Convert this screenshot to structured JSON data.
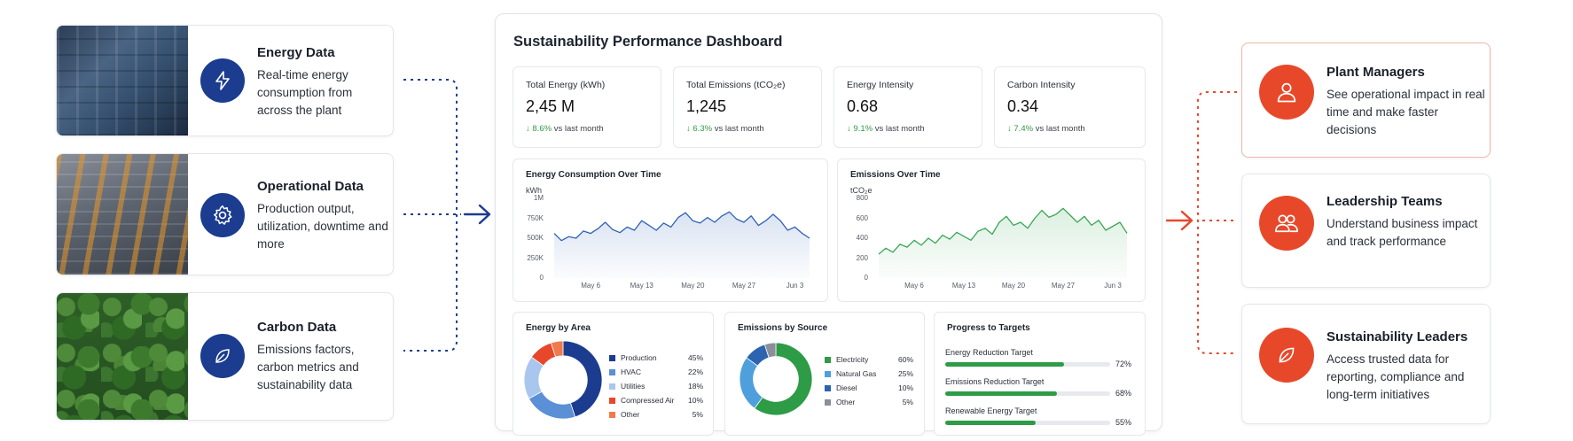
{
  "sources": [
    {
      "title": "Energy Data",
      "description": "Real-time energy consumption from across the plant",
      "icon": "lightning-icon",
      "photo": "factory-pipes-photo"
    },
    {
      "title": "Operational Data",
      "description": "Production output, utilization, downtime and more",
      "icon": "gear-icon",
      "photo": "robotic-assembly-line-photo"
    },
    {
      "title": "Carbon Data",
      "description": "Emissions factors, carbon metrics and sustainability data",
      "icon": "leaf-icon",
      "photo": "forest-canopy-photo"
    }
  ],
  "dashboard": {
    "title": "Sustainability Performance Dashboard",
    "kpis": [
      {
        "label": "Total Energy (kWh)",
        "value": "2,45 M",
        "delta": "8.6%",
        "delta_suffix": "vs last month"
      },
      {
        "label": "Total Emissions (tCO₂e)",
        "value": "1,245",
        "delta": "6.3%",
        "delta_suffix": "vs last month"
      },
      {
        "label": "Energy Intensity",
        "value": "0.68",
        "delta": "9.1%",
        "delta_suffix": "vs last month"
      },
      {
        "label": "Carbon Intensity",
        "value": "0.34",
        "delta": "7.4%",
        "delta_suffix": "vs last month"
      }
    ],
    "energy_by_area": {
      "title": "Energy by Area",
      "items": [
        {
          "label": "Production",
          "value": "45%"
        },
        {
          "label": "HVAC",
          "value": "22%"
        },
        {
          "label": "Utilities",
          "value": "18%"
        },
        {
          "label": "Compressed Air",
          "value": "10%"
        },
        {
          "label": "Other",
          "value": "5%"
        }
      ]
    },
    "emissions_by_source": {
      "title": "Emissions by Source",
      "items": [
        {
          "label": "Electricity",
          "value": "60%"
        },
        {
          "label": "Natural Gas",
          "value": "25%"
        },
        {
          "label": "Diesel",
          "value": "10%"
        },
        {
          "label": "Other",
          "value": "5%"
        }
      ]
    },
    "targets": {
      "title": "Progress to Targets",
      "items": [
        {
          "label": "Energy Reduction Target",
          "value": "72%",
          "fraction": 0.72
        },
        {
          "label": "Emissions Reduction Target",
          "value": "68%",
          "fraction": 0.68
        },
        {
          "label": "Renewable Energy Target",
          "value": "55%",
          "fraction": 0.55
        }
      ]
    }
  },
  "audiences": [
    {
      "title": "Plant Managers",
      "description": "See operational impact in real time and make faster decisions",
      "icon": "user-icon"
    },
    {
      "title": "Leadership Teams",
      "description": "Understand business impact and track performance",
      "icon": "team-icon"
    },
    {
      "title": "Sustainability Leaders",
      "description": "Access trusted data for reporting, compliance and long-term initiatives",
      "icon": "leaf-icon"
    }
  ],
  "colors": {
    "navy": "#1b3c8f",
    "accent_orange": "#e8482a",
    "green": "#2e9b47",
    "line_blue": "#2f62b5",
    "line_green": "#3aa655"
  },
  "chart_data": [
    {
      "type": "line",
      "title": "Energy Consumption Over Time",
      "ylabel": "kWh",
      "ytick_labels": [
        "0",
        "250K",
        "500K",
        "750K",
        "1M"
      ],
      "ylim": [
        0,
        1000000
      ],
      "xtick_labels": [
        "May 6",
        "May 13",
        "May 20",
        "May 27",
        "Jun 3"
      ],
      "x": [
        "May 1",
        "May 2",
        "May 3",
        "May 4",
        "May 5",
        "May 6",
        "May 7",
        "May 8",
        "May 9",
        "May 10",
        "May 11",
        "May 12",
        "May 13",
        "May 14",
        "May 15",
        "May 16",
        "May 17",
        "May 18",
        "May 19",
        "May 20",
        "May 21",
        "May 22",
        "May 23",
        "May 24",
        "May 25",
        "May 26",
        "May 27",
        "May 28",
        "May 29",
        "May 30",
        "May 31",
        "Jun 1",
        "Jun 2",
        "Jun 3",
        "Jun 4",
        "Jun 5"
      ],
      "series": [
        {
          "values": [
            560000,
            470000,
            520000,
            500000,
            590000,
            560000,
            620000,
            700000,
            610000,
            570000,
            640000,
            600000,
            720000,
            660000,
            600000,
            690000,
            640000,
            760000,
            820000,
            720000,
            690000,
            760000,
            700000,
            780000,
            830000,
            740000,
            700000,
            780000,
            660000,
            720000,
            800000,
            720000,
            600000,
            640000,
            560000,
            500000
          ]
        }
      ],
      "color": "#2f62b5",
      "grid": false
    },
    {
      "type": "line",
      "title": "Emissions Over Time",
      "ylabel": "tCO₂e",
      "ytick_labels": [
        "0",
        "200",
        "400",
        "600",
        "800"
      ],
      "ylim": [
        0,
        800
      ],
      "xtick_labels": [
        "May 6",
        "May 13",
        "May 20",
        "May 27",
        "Jun 3"
      ],
      "x": [
        "May 1",
        "May 2",
        "May 3",
        "May 4",
        "May 5",
        "May 6",
        "May 7",
        "May 8",
        "May 9",
        "May 10",
        "May 11",
        "May 12",
        "May 13",
        "May 14",
        "May 15",
        "May 16",
        "May 17",
        "May 18",
        "May 19",
        "May 20",
        "May 21",
        "May 22",
        "May 23",
        "May 24",
        "May 25",
        "May 26",
        "May 27",
        "May 28",
        "May 29",
        "May 30",
        "May 31",
        "Jun 1",
        "Jun 2",
        "Jun 3",
        "Jun 4",
        "Jun 5"
      ],
      "series": [
        {
          "values": [
            240,
            300,
            260,
            340,
            310,
            380,
            330,
            400,
            350,
            430,
            390,
            460,
            420,
            380,
            470,
            500,
            440,
            560,
            620,
            530,
            560,
            500,
            600,
            680,
            610,
            640,
            700,
            630,
            560,
            620,
            530,
            580,
            480,
            520,
            560,
            450
          ]
        }
      ],
      "color": "#3aa655",
      "grid": false
    },
    {
      "type": "pie",
      "title": "Energy by Area",
      "labels": [
        "Production",
        "HVAC",
        "Utilities",
        "Compressed Air",
        "Other"
      ],
      "values": [
        45,
        22,
        18,
        10,
        5
      ],
      "colors": [
        "#1b3c8f",
        "#5b8fd6",
        "#a9c6ee",
        "#e8482a",
        "#f07a4c"
      ]
    },
    {
      "type": "pie",
      "title": "Emissions by Source",
      "labels": [
        "Electricity",
        "Natural Gas",
        "Diesel",
        "Other"
      ],
      "values": [
        60,
        25,
        10,
        5
      ],
      "colors": [
        "#2e9b47",
        "#4f9fdc",
        "#2c64b0",
        "#8a8f98"
      ]
    }
  ]
}
